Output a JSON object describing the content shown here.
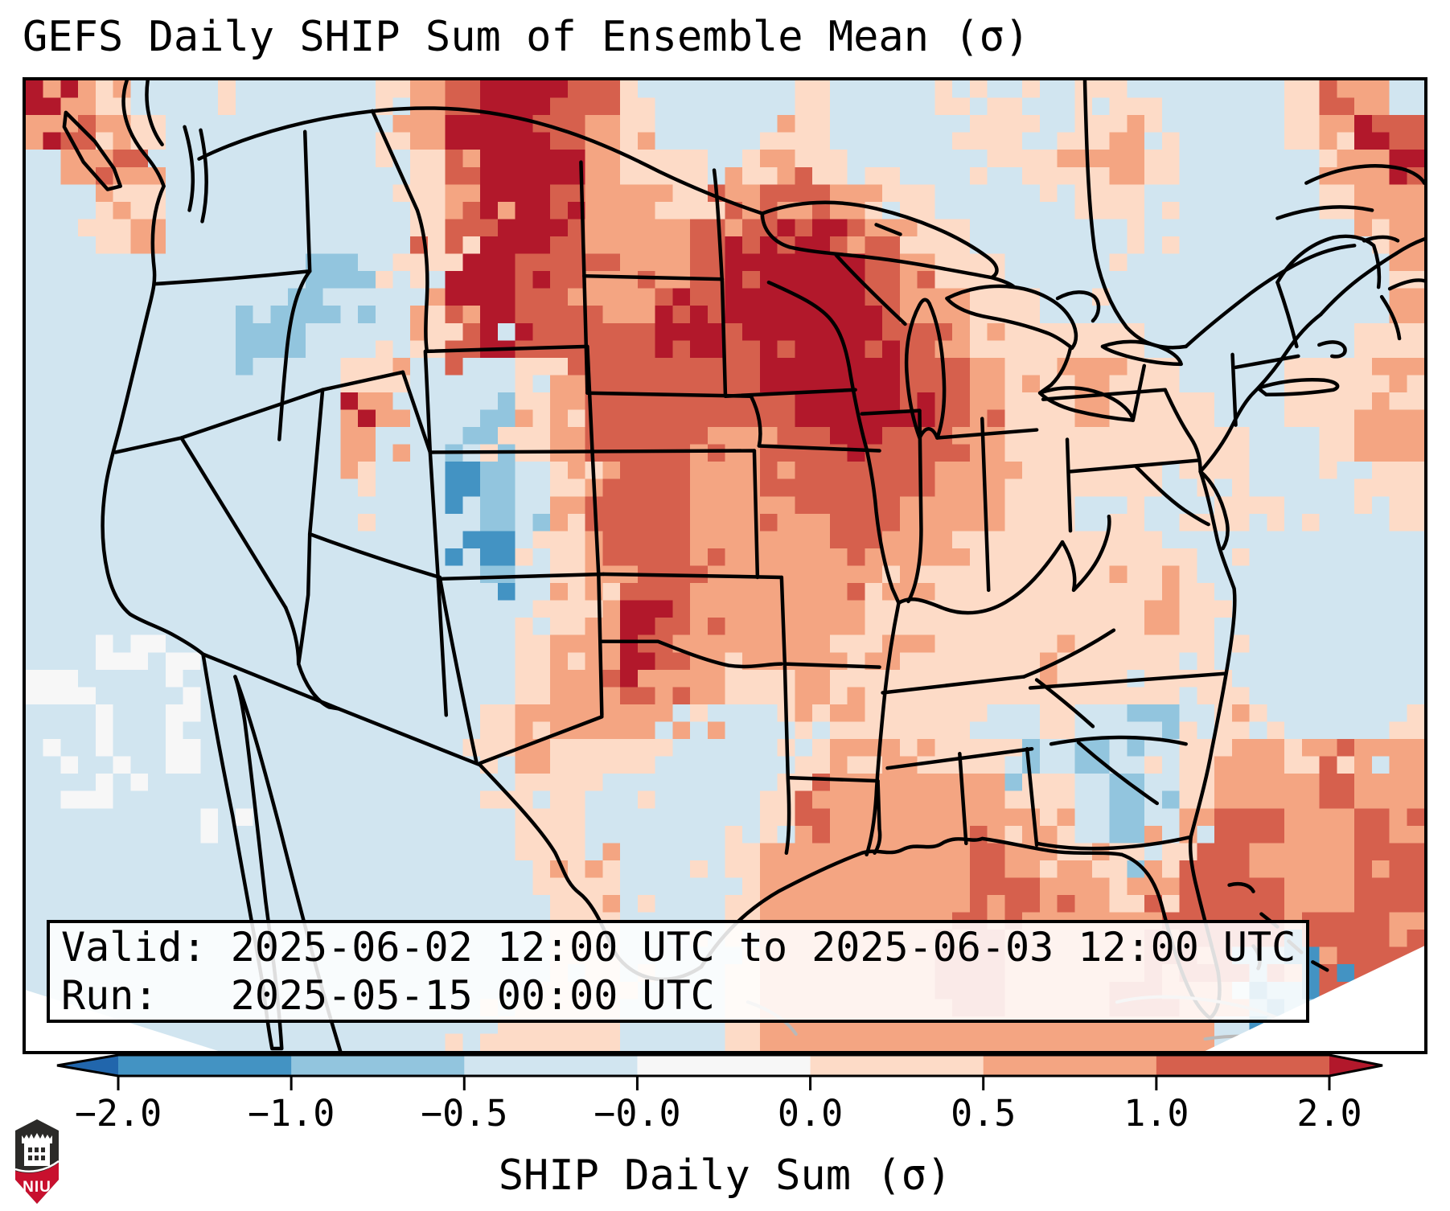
{
  "title": "GEFS Daily SHIP Sum of Ensemble Mean (σ)",
  "info_box": {
    "valid_line": "Valid: 2025-06-02 12:00 UTC to 2025-06-03 12:00 UTC",
    "run_line": "Run:   2025-05-15 00:00 UTC"
  },
  "colorbar": {
    "label": "SHIP Daily Sum (σ)",
    "ticks": [
      "−2.0",
      "−1.0",
      "−0.5",
      "−0.0",
      "0.0",
      "0.5",
      "1.0",
      "2.0"
    ],
    "segment_colors": [
      "#4393c3",
      "#92c5de",
      "#d1e5f0",
      "#f7f7f7",
      "#fddbc7",
      "#f4a582",
      "#d6604d"
    ],
    "extend_low_color": "#2166ac",
    "extend_high_color": "#b2182b",
    "outline_color": "#000000"
  },
  "logo": {
    "text": "NIU",
    "shield_dark": "#2b2a28",
    "shield_red": "#c8102e"
  },
  "chart_data": {
    "type": "heatmap",
    "title": "GEFS Daily SHIP Sum of Ensemble Mean (σ)",
    "colorbar_label": "SHIP Daily Sum (σ)",
    "valid": "2025-06-02 12:00 UTC to 2025-06-03 12:00 UTC",
    "run": "2025-05-15 00:00 UTC",
    "level_boundaries": [
      -2.0,
      -1.0,
      -0.5,
      -0.0,
      0.0,
      0.5,
      1.0,
      2.0
    ],
    "extend": "both",
    "palette": {
      "0": "#2166ac",
      "1": "#4393c3",
      "2": "#92c5de",
      "3": "#d1e5f0",
      "4": "#f7f7f7",
      "5": "#fddbc7",
      "6": "#f4a582",
      "7": "#d6604d",
      "8": "#b2182b"
    },
    "grid_cols": 40,
    "grid_rows": 28,
    "grid": [
      "8653353333567887753333533355335533335763",
      "6765333333568887653335533335535653335687",
      "3676333333357888655356553333556653333568",
      "3365333333356887665567765533335533333566",
      "3356333333357887666778876553333533333356",
      "3333333322358877766788887655333333333335",
      "3333333223368877667788887665533333333336",
      "3333332233357877778878888765555533333355",
      "3333333335533356777778888776556553335556",
      "3333333338633256777777888876556555335565",
      "3333333336332256777667787776555555533566",
      "3333333335331235677667777766555535533355",
      "3333333333331236777666777666553533553335",
      "3333333333333135677666676665555553333333",
      "3333333333333235677666666655555655333333",
      "3333333333333335687666665555555565333333",
      "3344333333333356687666656655565555333333",
      "4433433333333356676655655555555555533333",
      "3343333333333566665333565553353323553335",
      "3433433333333565553333566555232335665666",
      "3343333333333355333335666666553235666766",
      "3333343333333355333335766666653236776676",
      "3333333333333355633356666667665357766667",
      "3333333333333335533356666667766567776677",
      "3333333333333335533356666677666667777776",
      "3333333333333335533356666677666677721677",
      "3333333333333355533356666677666776612773",
      "3333333333333555533356666666666666321100"
    ]
  }
}
